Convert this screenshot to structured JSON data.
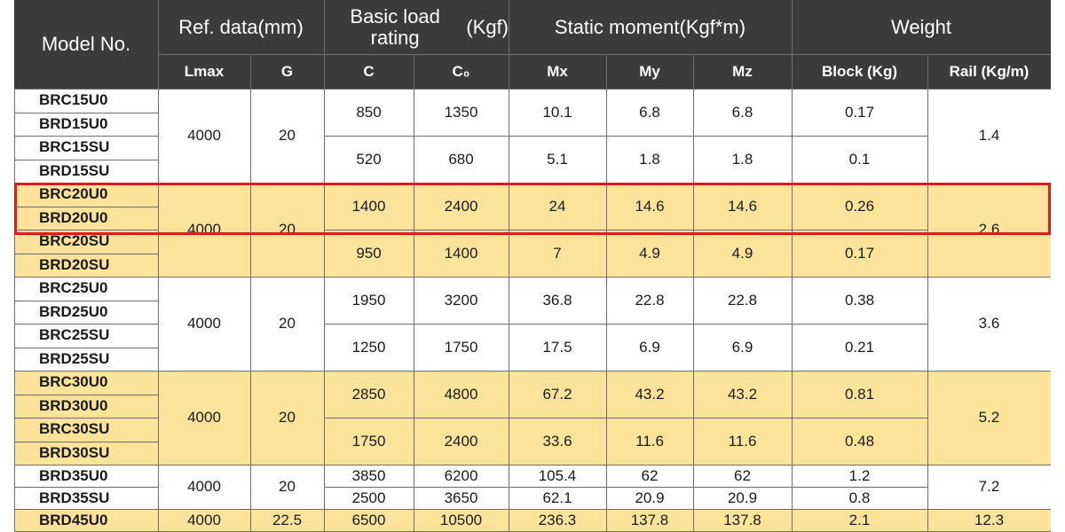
{
  "headers": {
    "model_no": "Model No.",
    "ref_data": "Ref. data\n(mm)",
    "basic_load": "Basic load rating\n(Kgf)",
    "static_moment": "Static moment\n(Kgf*m)",
    "weight": "Weight",
    "lmax": "Lmax",
    "g": "G",
    "c": "C",
    "c0": "C₀",
    "mx": "Mx",
    "my": "My",
    "mz": "Mz",
    "block": "Block (Kg)",
    "rail": "Rail (Kg/m)"
  },
  "colors": {
    "header_bg": "#3b3b3b",
    "highlight_row_bg": "#fde49a",
    "plain_row_bg": "#ffffff",
    "grid": "#6e6e6e",
    "selection_box": "#e01b1b"
  },
  "groups": [
    {
      "highlighted": false,
      "models": [
        "BRC15U0",
        "BRD15U0",
        "BRC15SU",
        "BRD15SU"
      ],
      "lmax": "4000",
      "g": "20",
      "rail": "1.4",
      "sub": [
        {
          "c": "850",
          "c0": "1350",
          "mx": "10.1",
          "my": "6.8",
          "mz": "6.8",
          "block": "0.17"
        },
        {
          "c": "520",
          "c0": "680",
          "mx": "5.1",
          "my": "1.8",
          "mz": "1.8",
          "block": "0.1"
        }
      ]
    },
    {
      "highlighted": true,
      "models": [
        "BRC20U0",
        "BRD20U0",
        "BRC20SU",
        "BRD20SU"
      ],
      "lmax": "4000",
      "g": "20",
      "rail": "2.6",
      "sub": [
        {
          "c": "1400",
          "c0": "2400",
          "mx": "24",
          "my": "14.6",
          "mz": "14.6",
          "block": "0.26"
        },
        {
          "c": "950",
          "c0": "1400",
          "mx": "7",
          "my": "4.9",
          "mz": "4.9",
          "block": "0.17"
        }
      ]
    },
    {
      "highlighted": false,
      "models": [
        "BRC25U0",
        "BRD25U0",
        "BRC25SU",
        "BRD25SU"
      ],
      "lmax": "4000",
      "g": "20",
      "rail": "3.6",
      "sub": [
        {
          "c": "1950",
          "c0": "3200",
          "mx": "36.8",
          "my": "22.8",
          "mz": "22.8",
          "block": "0.38"
        },
        {
          "c": "1250",
          "c0": "1750",
          "mx": "17.5",
          "my": "6.9",
          "mz": "6.9",
          "block": "0.21"
        }
      ]
    },
    {
      "highlighted": true,
      "models": [
        "BRC30U0",
        "BRD30U0",
        "BRC30SU",
        "BRD30SU"
      ],
      "lmax": "4000",
      "g": "20",
      "rail": "5.2",
      "sub": [
        {
          "c": "2850",
          "c0": "4800",
          "mx": "67.2",
          "my": "43.2",
          "mz": "43.2",
          "block": "0.81"
        },
        {
          "c": "1750",
          "c0": "2400",
          "mx": "33.6",
          "my": "11.6",
          "mz": "11.6",
          "block": "0.48"
        }
      ]
    },
    {
      "highlighted": false,
      "models": [
        "BRD35U0",
        "BRD35SU"
      ],
      "lmax": "4000",
      "g": "20",
      "rail": "7.2",
      "sub": [
        {
          "c": "3850",
          "c0": "6200",
          "mx": "105.4",
          "my": "62",
          "mz": "62",
          "block": "1.2"
        },
        {
          "c": "2500",
          "c0": "3650",
          "mx": "62.1",
          "my": "20.9",
          "mz": "20.9",
          "block": "0.8"
        }
      ]
    },
    {
      "highlighted": true,
      "models": [
        "BRD45U0"
      ],
      "lmax": "4000",
      "g": "22.5",
      "rail": "12.3",
      "sub": [
        {
          "c": "6500",
          "c0": "10500",
          "mx": "236.3",
          "my": "137.8",
          "mz": "137.8",
          "block": "2.1"
        }
      ]
    }
  ]
}
